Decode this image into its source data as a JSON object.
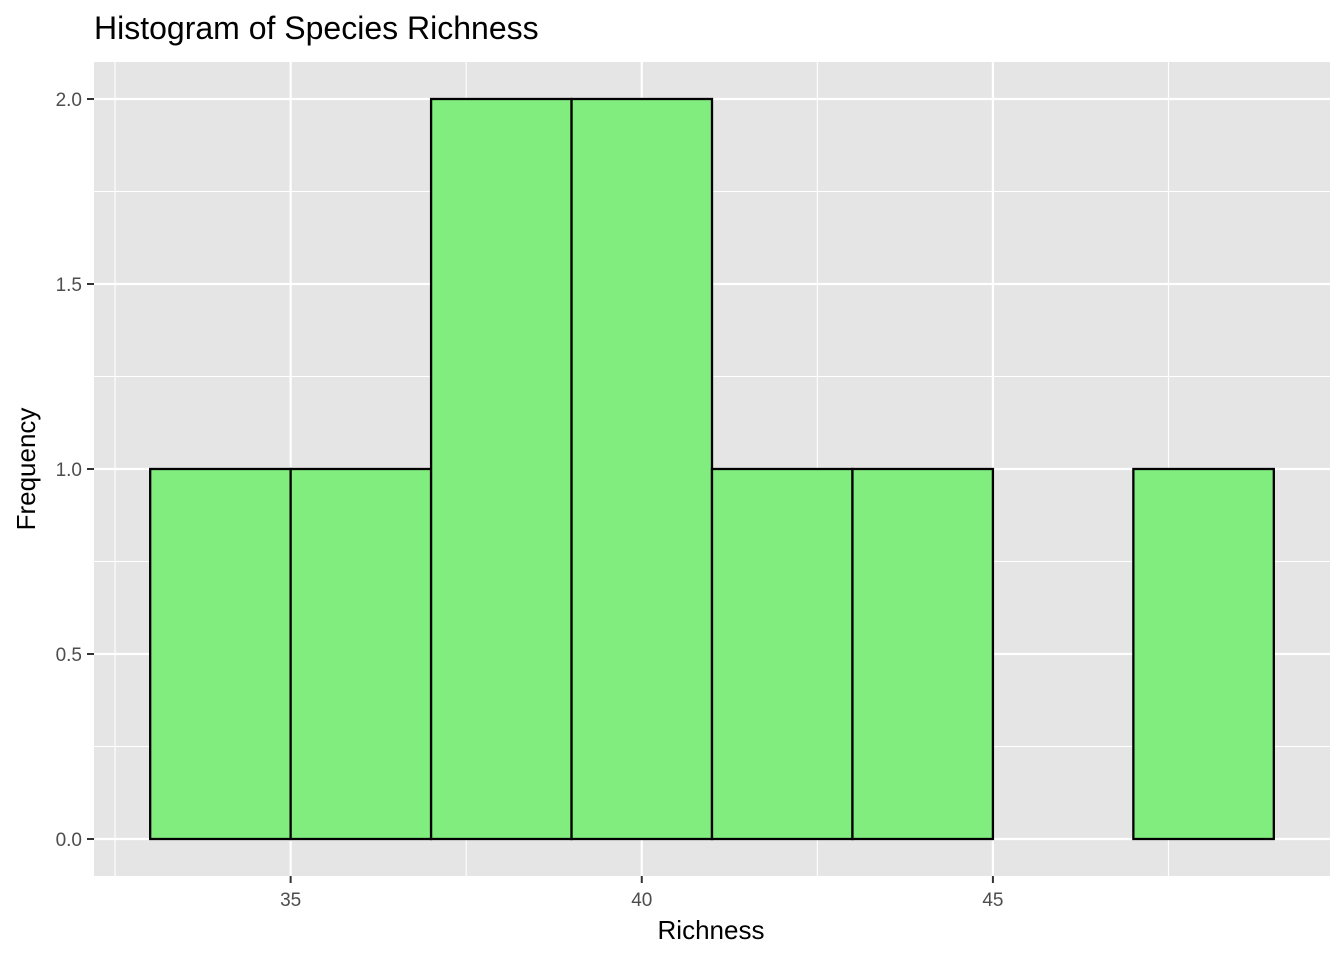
{
  "chart_data": {
    "type": "bar",
    "title": "Histogram of Species Richness",
    "xlabel": "Richness",
    "ylabel": "Frequency",
    "bins": [
      {
        "x0": 33,
        "x1": 35,
        "count": 1
      },
      {
        "x0": 35,
        "x1": 37,
        "count": 1
      },
      {
        "x0": 37,
        "x1": 39,
        "count": 2
      },
      {
        "x0": 39,
        "x1": 41,
        "count": 2
      },
      {
        "x0": 41,
        "x1": 43,
        "count": 1
      },
      {
        "x0": 43,
        "x1": 45,
        "count": 1
      },
      {
        "x0": 45,
        "x1": 47,
        "count": 0
      },
      {
        "x0": 47,
        "x1": 49,
        "count": 1
      }
    ],
    "xlim": [
      32.2,
      49.8
    ],
    "ylim": [
      -0.1,
      2.1
    ],
    "x_ticks": [
      35,
      40,
      45
    ],
    "x_tick_labels": [
      "35",
      "40",
      "45"
    ],
    "y_ticks": [
      0,
      0.5,
      1,
      1.5,
      2
    ],
    "y_tick_labels": [
      "0.0",
      "0.5",
      "1.0",
      "1.5",
      "2.0"
    ],
    "grid": true,
    "legend": "none",
    "colors": {
      "bar_fill": "#82ed7f",
      "bar_stroke": "#000000",
      "panel_background": "#e5e5e5",
      "grid": "#ffffff"
    }
  }
}
